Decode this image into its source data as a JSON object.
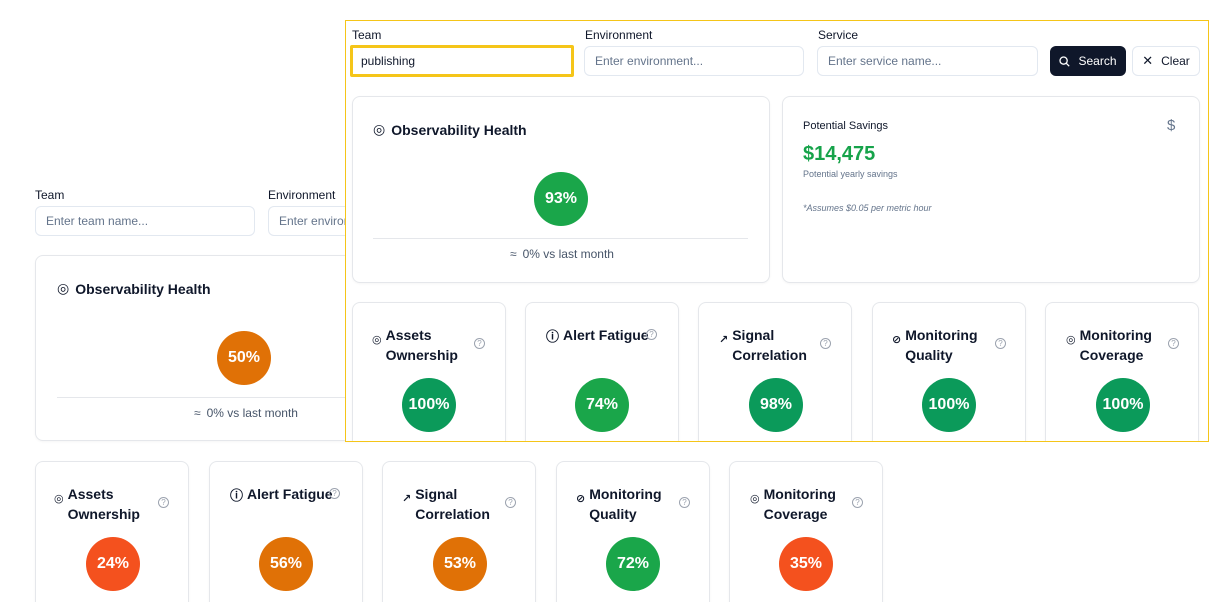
{
  "colors": {
    "green": "#0b9a5a",
    "bright_green": "#1aa64a",
    "orange": "#e07106",
    "red_orange": "#f4511e",
    "dark_button": "#0f172a",
    "highlight": "#f5c518"
  },
  "background": {
    "filters": {
      "team_label": "Team",
      "team_placeholder": "Enter team name...",
      "environment_label": "Environment",
      "environment_placeholder": "Enter environment..."
    },
    "health": {
      "title": "Observability Health",
      "icon": "target-icon",
      "score": "50%",
      "trend": "0% vs last month",
      "trend_icon": "≈"
    },
    "metrics": [
      {
        "title": "Assets Ownership",
        "icon": "target-icon",
        "value": "24%"
      },
      {
        "title": "Alert Fatigue",
        "icon": "alert-circle-icon",
        "value": "56%"
      },
      {
        "title": "Signal Correlation",
        "icon": "trend-up-icon",
        "value": "53%"
      },
      {
        "title": "Monitoring Quality",
        "icon": "check-circle-icon",
        "value": "72%"
      },
      {
        "title": "Monitoring Coverage",
        "icon": "target-icon",
        "value": "35%"
      }
    ]
  },
  "foreground": {
    "filters": {
      "team_label": "Team",
      "team_value": "publishing",
      "environment_label": "Environment",
      "environment_placeholder": "Enter environment...",
      "service_label": "Service",
      "service_placeholder": "Enter service name...",
      "search_label": "Search",
      "clear_label": "Clear"
    },
    "health": {
      "title": "Observability Health",
      "score": "93%",
      "trend": "0% vs last month",
      "trend_icon": "≈"
    },
    "savings": {
      "title": "Potential Savings",
      "amount": "$14,475",
      "subtitle": "Potential yearly savings",
      "note": "*Assumes $0.05 per metric hour",
      "icon_glyph": "$"
    },
    "metrics": [
      {
        "title": "Assets Ownership",
        "value": "100%"
      },
      {
        "title": "Alert Fatigue",
        "value": "74%"
      },
      {
        "title": "Signal Correlation",
        "value": "98%"
      },
      {
        "title": "Monitoring Quality",
        "value": "100%"
      },
      {
        "title": "Monitoring Coverage",
        "value": "100%"
      }
    ]
  }
}
